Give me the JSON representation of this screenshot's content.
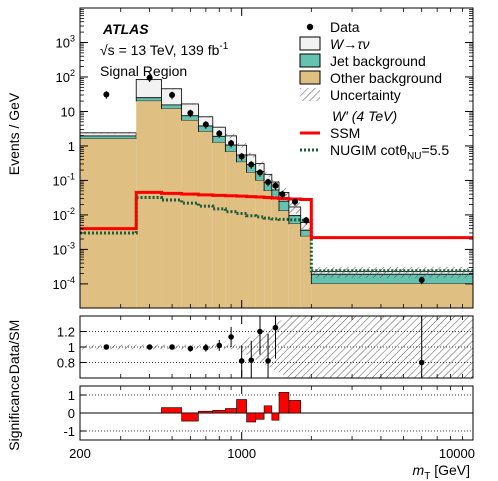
{
  "chart_data": [
    {
      "panel": "main",
      "type": "histogram",
      "xscale": "log",
      "yscale": "log",
      "xlim": [
        200,
        10000
      ],
      "ylim": [
        2e-05,
        10000
      ],
      "ylabel": "Events / GeV",
      "experiment_label": "ATLAS",
      "energy_label": "√s = 13 TeV, 139 fb",
      "lumi_sup": "-1",
      "region_label": "Signal Region",
      "legend_placement": "top-right",
      "legend": {
        "data": "Data",
        "wtau_main": "W",
        "wtau_arrow": "→",
        "wtau_tail": "τν",
        "jet": "Jet background",
        "other": "Other background",
        "uncertainty": "Uncertainty",
        "signal_header": "W′ (4 TeV)",
        "ssm": "SSM",
        "nugim_main": "NUGIM cotθ",
        "nugim_sub": "NU",
        "nugim_tail": "=5.5"
      },
      "ytick_mantissa": "10",
      "ytick_exponents": [
        "-4",
        "-3",
        "-2",
        "-1",
        "",
        "",
        "2",
        "3"
      ],
      "ytick_plain": [
        "1",
        "10"
      ],
      "bin_edges": [
        200,
        350,
        450,
        550,
        650,
        750,
        850,
        950,
        1050,
        1150,
        1250,
        1350,
        1450,
        1600,
        1800,
        2000,
        10000
      ],
      "stack": {
        "other_background": [
          1.6,
          20,
          12,
          5.5,
          2.6,
          1.25,
          0.68,
          0.34,
          0.17,
          0.1,
          0.05,
          0.028,
          0.013,
          0.0055,
          0.0024,
          0.0001
        ],
        "jet_background": [
          0.35,
          5,
          3.5,
          2.0,
          1.2,
          0.65,
          0.38,
          0.21,
          0.12,
          0.08,
          0.038,
          0.025,
          0.012,
          0.004,
          0.0012,
          9e-05
        ],
        "w_tau_nu": [
          0.45,
          60,
          30,
          9,
          3.2,
          1.6,
          0.9,
          0.5,
          0.26,
          0.13,
          0.062,
          0.037,
          0.02,
          0.0075,
          0.0024,
          4e-05
        ]
      },
      "signals": {
        "SSM": [
          0.004,
          0.045,
          0.042,
          0.04,
          0.038,
          0.037,
          0.036,
          0.035,
          0.034,
          0.033,
          0.032,
          0.031,
          0.03,
          0.029,
          0.028,
          0.0022
        ],
        "NUGIM": [
          0.003,
          0.032,
          0.027,
          0.022,
          0.018,
          0.015,
          0.0125,
          0.011,
          0.0095,
          0.0088,
          0.0081,
          0.0077,
          0.0074,
          0.0072,
          0.007,
          0.00024
        ]
      },
      "data_points": [
        {
          "x": 260,
          "y": 31
        },
        {
          "x": 400,
          "y": 95
        },
        {
          "x": 500,
          "y": 30
        },
        {
          "x": 600,
          "y": 9
        },
        {
          "x": 700,
          "y": 4.2
        },
        {
          "x": 800,
          "y": 2.3
        },
        {
          "x": 900,
          "y": 1.2
        },
        {
          "x": 1000,
          "y": 0.5
        },
        {
          "x": 1100,
          "y": 0.29
        },
        {
          "x": 1200,
          "y": 0.17
        },
        {
          "x": 1300,
          "y": 0.09
        },
        {
          "x": 1400,
          "y": 0.07
        },
        {
          "x": 1500,
          "y": 0.04
        },
        {
          "x": 1700,
          "y": 0.024
        },
        {
          "x": 1900,
          "y": 0.007
        },
        {
          "x": 6000,
          "y": 0.00013
        }
      ]
    },
    {
      "panel": "ratio",
      "type": "scatter",
      "ylabel": "Data/SM",
      "ylim": [
        0.6,
        1.4
      ],
      "yticks": [
        "0.8",
        "1",
        "1.2"
      ],
      "x": [
        260,
        400,
        500,
        600,
        700,
        800,
        900,
        1000,
        1100,
        1200,
        1300,
        1400,
        6000
      ],
      "y": [
        1.0,
        1.0,
        1.0,
        0.98,
        0.99,
        1.02,
        1.13,
        0.82,
        0.83,
        1.2,
        0.82,
        1.25,
        0.8
      ],
      "err": [
        0.02,
        0.03,
        0.03,
        0.04,
        0.05,
        0.07,
        0.13,
        0.2,
        0.25,
        0.3,
        0.35,
        0.4,
        0.8
      ]
    },
    {
      "panel": "significance",
      "type": "bar",
      "ylabel": "Significance",
      "ylim": [
        -1.5,
        1.5
      ],
      "yticks": [
        "-1",
        "0",
        "1"
      ],
      "bin_edges": [
        200,
        350,
        450,
        550,
        650,
        750,
        850,
        950,
        1050,
        1150,
        1250,
        1350,
        1450,
        1600,
        1800,
        2000,
        10000
      ],
      "values": [
        0.0,
        0.0,
        0.3,
        -0.45,
        0.1,
        0.15,
        0.25,
        0.75,
        -0.5,
        -0.35,
        0.4,
        -0.4,
        1.15,
        0.7,
        0.0,
        0.0
      ],
      "xlabel_main": "m",
      "xlabel_sub": "T",
      "xlabel_unit": " [GeV]",
      "xticks": [
        "200",
        "1000",
        "10000"
      ]
    }
  ]
}
